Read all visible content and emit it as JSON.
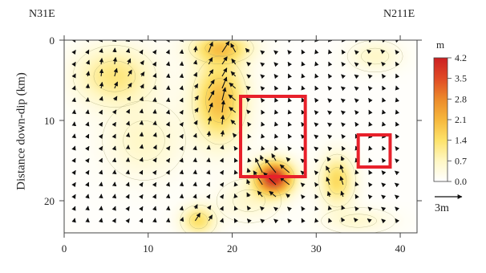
{
  "chart_data": {
    "type": "heatmap",
    "title": "",
    "left_label": "N31E",
    "right_label": "N211E",
    "ylabel": "Distance down-dip (km)",
    "xlabel": "",
    "x_ticks": [
      0,
      10,
      20,
      30,
      40
    ],
    "y_ticks": [
      0,
      10,
      20
    ],
    "xlim": [
      0,
      42
    ],
    "ylim": [
      0,
      24
    ],
    "colorbar": {
      "unit": "m",
      "ticks": [
        "4.2",
        "3.5",
        "2.8",
        "2.1",
        "1.4",
        "0.7",
        "0.0"
      ],
      "min": 0,
      "max": 4.2,
      "colors": [
        "#ffffff",
        "#fff7c4",
        "#fde26a",
        "#f6b73c",
        "#ec8a2b",
        "#e04a25",
        "#cc1f22"
      ]
    },
    "slip_peaks": [
      {
        "x": 25.0,
        "y": 17.2,
        "slip": 4.0,
        "rx": 2.2,
        "ry": 2.0
      },
      {
        "x": 18.7,
        "y": 1.0,
        "slip": 1.6,
        "rx": 3.5,
        "ry": 1.8
      },
      {
        "x": 18.5,
        "y": 7.5,
        "slip": 2.0,
        "rx": 3.0,
        "ry": 5.0
      },
      {
        "x": 6.0,
        "y": 4.5,
        "slip": 1.2,
        "rx": 4.5,
        "ry": 3.5
      },
      {
        "x": 9.5,
        "y": 12.5,
        "slip": 0.6,
        "rx": 4.5,
        "ry": 4.5
      },
      {
        "x": 16.0,
        "y": 22.5,
        "slip": 1.4,
        "rx": 2.0,
        "ry": 1.8
      },
      {
        "x": 32.5,
        "y": 17.5,
        "slip": 1.5,
        "rx": 2.0,
        "ry": 3.0
      },
      {
        "x": 37.0,
        "y": 2.0,
        "slip": 0.6,
        "rx": 3.0,
        "ry": 1.8
      },
      {
        "x": 22.0,
        "y": 20.0,
        "slip": 0.5,
        "rx": 3.5,
        "ry": 2.5
      },
      {
        "x": 35.0,
        "y": 22.5,
        "slip": 0.5,
        "rx": 4.0,
        "ry": 1.5
      }
    ],
    "highlight_boxes": [
      {
        "x0": 21.0,
        "x1": 28.7,
        "y0": 7.0,
        "y1": 17.0,
        "color": "#e8202a"
      },
      {
        "x0": 35.0,
        "x1": 38.8,
        "y0": 11.8,
        "y1": 15.8,
        "color": "#e8202a"
      }
    ],
    "scale_arrow": {
      "label": "3m",
      "length_m": 3
    }
  }
}
